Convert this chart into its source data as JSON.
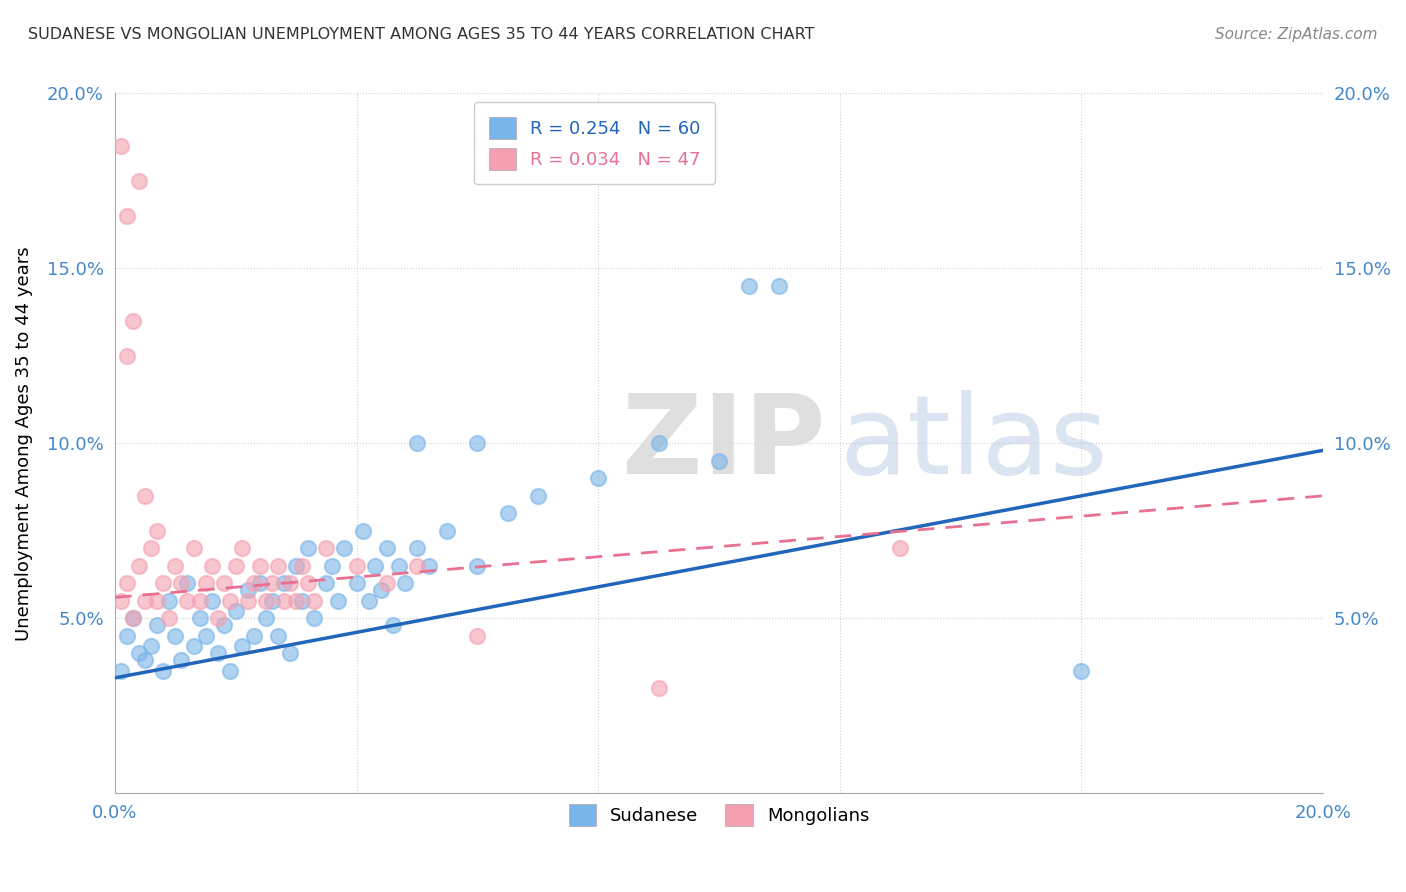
{
  "title": "SUDANESE VS MONGOLIAN UNEMPLOYMENT AMONG AGES 35 TO 44 YEARS CORRELATION CHART",
  "source": "Source: ZipAtlas.com",
  "ylabel": "Unemployment Among Ages 35 to 44 years",
  "xlim": [
    0.0,
    0.2
  ],
  "ylim": [
    0.0,
    0.2
  ],
  "sudanese_color": "#7ab4e8",
  "mongolian_color": "#f4a0b0",
  "sudanese_line_color": "#2266bb",
  "mongolian_line_color": "#e87090",
  "sudanese_N": 60,
  "mongolian_N": 47,
  "sudanese_line": {
    "x0": 0.0,
    "y0": 0.033,
    "x1": 0.2,
    "y1": 0.098
  },
  "mongolian_line": {
    "x0": 0.0,
    "y0": 0.056,
    "x1": 0.2,
    "y1": 0.085
  },
  "sudanese_points": [
    [
      0.001,
      0.035
    ],
    [
      0.002,
      0.045
    ],
    [
      0.003,
      0.05
    ],
    [
      0.004,
      0.04
    ],
    [
      0.005,
      0.038
    ],
    [
      0.006,
      0.042
    ],
    [
      0.007,
      0.048
    ],
    [
      0.008,
      0.035
    ],
    [
      0.009,
      0.055
    ],
    [
      0.01,
      0.045
    ],
    [
      0.011,
      0.038
    ],
    [
      0.012,
      0.06
    ],
    [
      0.013,
      0.042
    ],
    [
      0.014,
      0.05
    ],
    [
      0.015,
      0.045
    ],
    [
      0.016,
      0.055
    ],
    [
      0.017,
      0.04
    ],
    [
      0.018,
      0.048
    ],
    [
      0.019,
      0.035
    ],
    [
      0.02,
      0.052
    ],
    [
      0.021,
      0.042
    ],
    [
      0.022,
      0.058
    ],
    [
      0.023,
      0.045
    ],
    [
      0.024,
      0.06
    ],
    [
      0.025,
      0.05
    ],
    [
      0.026,
      0.055
    ],
    [
      0.027,
      0.045
    ],
    [
      0.028,
      0.06
    ],
    [
      0.029,
      0.04
    ],
    [
      0.03,
      0.065
    ],
    [
      0.031,
      0.055
    ],
    [
      0.032,
      0.07
    ],
    [
      0.033,
      0.05
    ],
    [
      0.035,
      0.06
    ],
    [
      0.036,
      0.065
    ],
    [
      0.037,
      0.055
    ],
    [
      0.038,
      0.07
    ],
    [
      0.04,
      0.06
    ],
    [
      0.041,
      0.075
    ],
    [
      0.042,
      0.055
    ],
    [
      0.043,
      0.065
    ],
    [
      0.044,
      0.058
    ],
    [
      0.045,
      0.07
    ],
    [
      0.046,
      0.048
    ],
    [
      0.047,
      0.065
    ],
    [
      0.048,
      0.06
    ],
    [
      0.05,
      0.07
    ],
    [
      0.052,
      0.065
    ],
    [
      0.055,
      0.075
    ],
    [
      0.06,
      0.065
    ],
    [
      0.065,
      0.08
    ],
    [
      0.07,
      0.085
    ],
    [
      0.08,
      0.09
    ],
    [
      0.09,
      0.1
    ],
    [
      0.1,
      0.095
    ],
    [
      0.105,
      0.145
    ],
    [
      0.11,
      0.145
    ],
    [
      0.16,
      0.035
    ],
    [
      0.06,
      0.1
    ],
    [
      0.05,
      0.1
    ]
  ],
  "mongolian_points": [
    [
      0.001,
      0.185
    ],
    [
      0.002,
      0.165
    ],
    [
      0.003,
      0.135
    ],
    [
      0.002,
      0.125
    ],
    [
      0.004,
      0.175
    ],
    [
      0.005,
      0.085
    ],
    [
      0.007,
      0.075
    ],
    [
      0.001,
      0.055
    ],
    [
      0.002,
      0.06
    ],
    [
      0.003,
      0.05
    ],
    [
      0.004,
      0.065
    ],
    [
      0.005,
      0.055
    ],
    [
      0.006,
      0.07
    ],
    [
      0.007,
      0.055
    ],
    [
      0.008,
      0.06
    ],
    [
      0.009,
      0.05
    ],
    [
      0.01,
      0.065
    ],
    [
      0.011,
      0.06
    ],
    [
      0.012,
      0.055
    ],
    [
      0.013,
      0.07
    ],
    [
      0.014,
      0.055
    ],
    [
      0.015,
      0.06
    ],
    [
      0.016,
      0.065
    ],
    [
      0.017,
      0.05
    ],
    [
      0.018,
      0.06
    ],
    [
      0.019,
      0.055
    ],
    [
      0.02,
      0.065
    ],
    [
      0.021,
      0.07
    ],
    [
      0.022,
      0.055
    ],
    [
      0.023,
      0.06
    ],
    [
      0.024,
      0.065
    ],
    [
      0.025,
      0.055
    ],
    [
      0.026,
      0.06
    ],
    [
      0.027,
      0.065
    ],
    [
      0.028,
      0.055
    ],
    [
      0.029,
      0.06
    ],
    [
      0.03,
      0.055
    ],
    [
      0.031,
      0.065
    ],
    [
      0.032,
      0.06
    ],
    [
      0.033,
      0.055
    ],
    [
      0.035,
      0.07
    ],
    [
      0.04,
      0.065
    ],
    [
      0.045,
      0.06
    ],
    [
      0.05,
      0.065
    ],
    [
      0.06,
      0.045
    ],
    [
      0.09,
      0.03
    ],
    [
      0.13,
      0.07
    ]
  ]
}
